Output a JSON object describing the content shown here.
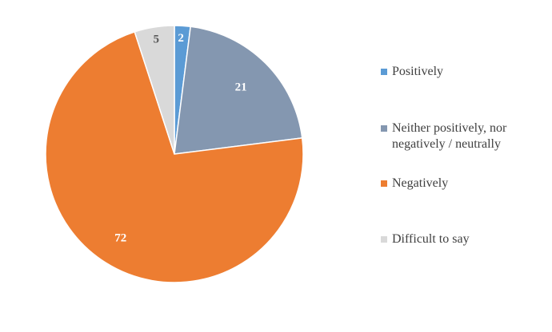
{
  "chart_data": {
    "type": "pie",
    "title": "",
    "categories": [
      "Positively",
      "Neither positively, nor\nnegatively / neutrally",
      "Negatively",
      "Difficult to say"
    ],
    "values": [
      2,
      21,
      72,
      5
    ],
    "data_labels": [
      "2",
      "21",
      "72",
      "5"
    ],
    "colors": [
      "#5B9BD5",
      "#8497B0",
      "#ED7D31",
      "#D9D9D9"
    ],
    "label_colors": [
      "#ffffff",
      "#ffffff",
      "#ffffff",
      "#595959"
    ],
    "start_angle_deg": 0,
    "direction": "clockwise",
    "legend_position": "right"
  },
  "legend": {
    "items": [
      {
        "label": "Positively",
        "color": "#5B9BD5"
      },
      {
        "label": "Neither positively, nor\nnegatively / neutrally",
        "color": "#8497B0"
      },
      {
        "label": "Negatively",
        "color": "#ED7D31"
      },
      {
        "label": "Difficult to say",
        "color": "#D9D9D9"
      }
    ]
  }
}
